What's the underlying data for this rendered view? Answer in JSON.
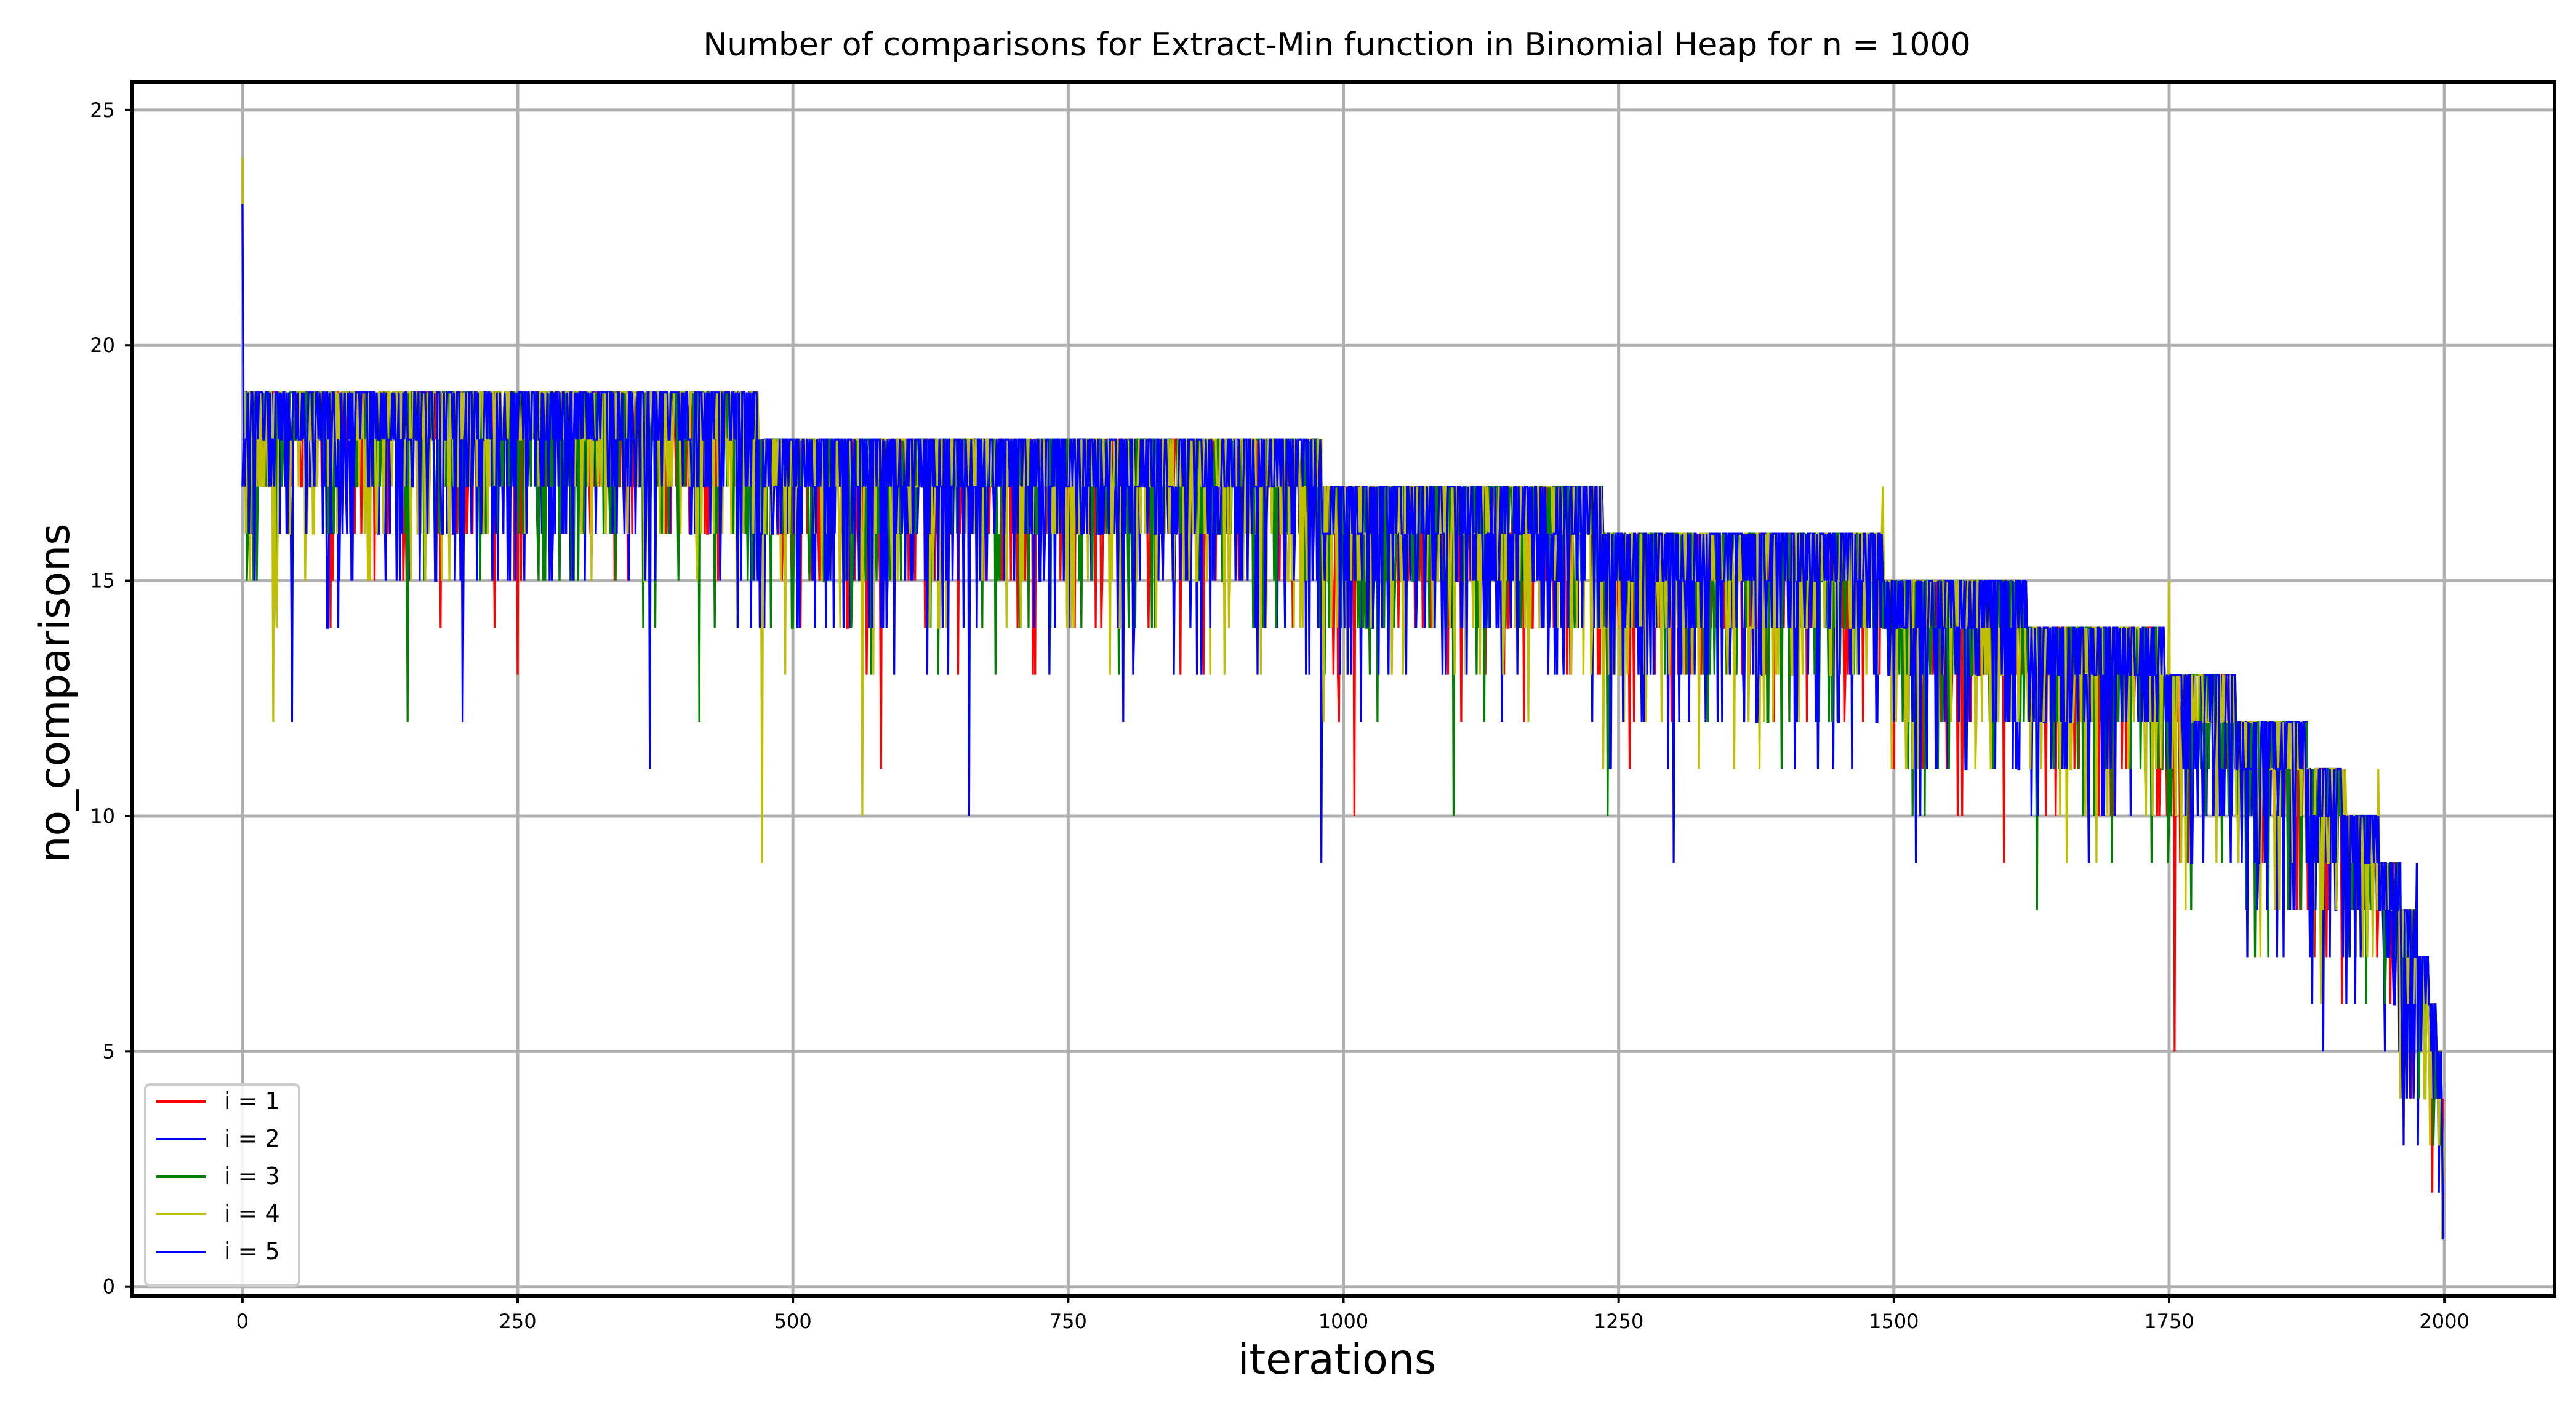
{
  "chart_data": {
    "type": "line",
    "title": "Number of comparisons for Extract-Min function in Binomial Heap for n = 1000",
    "xlabel": "iterations",
    "ylabel": "no_comparisons",
    "xlim": [
      -100,
      2100
    ],
    "ylim": [
      0,
      25
    ],
    "xticks": [
      0,
      250,
      500,
      750,
      1000,
      1250,
      1500,
      1750,
      2000
    ],
    "yticks": [
      0,
      5,
      10,
      15,
      20,
      25
    ],
    "xtick_labels": [
      "0",
      "250",
      "500",
      "750",
      "1000",
      "1250",
      "1500",
      "1750",
      "2000"
    ],
    "ytick_labels": [
      "0",
      "5",
      "10",
      "15",
      "20",
      "25"
    ],
    "grid": true,
    "legend_position": "lower-left",
    "n_points": 2000,
    "plateaus": [
      {
        "x_start": 0,
        "x_end": 468,
        "top": 19
      },
      {
        "x_start": 469,
        "x_end": 980,
        "top": 18
      },
      {
        "x_start": 981,
        "x_end": 1235,
        "top": 17
      },
      {
        "x_start": 1236,
        "x_end": 1490,
        "top": 16
      },
      {
        "x_start": 1491,
        "x_end": 1620,
        "top": 15
      },
      {
        "x_start": 1621,
        "x_end": 1745,
        "top": 14
      },
      {
        "x_start": 1746,
        "x_end": 1810,
        "top": 13
      },
      {
        "x_start": 1811,
        "x_end": 1875,
        "top": 12
      },
      {
        "x_start": 1876,
        "x_end": 1910,
        "top": 11
      },
      {
        "x_start": 1911,
        "x_end": 1940,
        "top": 10
      },
      {
        "x_start": 1941,
        "x_end": 1960,
        "top": 9
      },
      {
        "x_start": 1961,
        "x_end": 1975,
        "top": 8
      },
      {
        "x_start": 1976,
        "x_end": 1985,
        "top": 7
      },
      {
        "x_start": 1986,
        "x_end": 1992,
        "top": 6
      },
      {
        "x_start": 1993,
        "x_end": 1997,
        "top": 5
      },
      {
        "x_start": 1998,
        "x_end": 2000,
        "top": 3
      }
    ],
    "series": [
      {
        "name": "i = 1",
        "color": "#ff0000",
        "start_value": 18,
        "end_value": 4,
        "notable_points": [
          [
            0,
            18
          ],
          [
            120,
            15
          ],
          [
            250,
            13
          ],
          [
            580,
            11
          ],
          [
            1010,
            10
          ],
          [
            1600,
            9
          ],
          [
            1755,
            5
          ],
          [
            1970,
            4
          ]
        ]
      },
      {
        "name": "i = 2",
        "color": "#0000ff",
        "start_value": 17,
        "end_value": 2,
        "notable_points": [
          [
            0,
            17
          ],
          [
            45,
            12
          ],
          [
            370,
            11
          ],
          [
            660,
            10
          ],
          [
            980,
            9
          ],
          [
            1520,
            9
          ],
          [
            1890,
            5
          ],
          [
            1995,
            2
          ]
        ]
      },
      {
        "name": "i = 3",
        "color": "#008000",
        "start_value": 18,
        "end_value": 3,
        "notable_points": [
          [
            0,
            18
          ],
          [
            150,
            12
          ],
          [
            415,
            12
          ],
          [
            1100,
            10
          ],
          [
            1240,
            10
          ],
          [
            1630,
            8
          ],
          [
            1840,
            7
          ],
          [
            1990,
            3
          ]
        ]
      },
      {
        "name": "i = 4",
        "color": "#bfbf00",
        "start_value": 24,
        "end_value": 3,
        "notable_points": [
          [
            0,
            24
          ],
          [
            28,
            12
          ],
          [
            472,
            9
          ],
          [
            563,
            10
          ],
          [
            1490,
            17
          ],
          [
            1750,
            15
          ],
          [
            1940,
            11
          ],
          [
            1960,
            4
          ],
          [
            1995,
            3
          ]
        ]
      },
      {
        "name": "i = 5",
        "color": "#0000ff",
        "start_value": 23,
        "end_value": 1,
        "notable_points": [
          [
            0,
            23
          ],
          [
            200,
            12
          ],
          [
            800,
            12
          ],
          [
            1300,
            9
          ],
          [
            1880,
            6
          ],
          [
            1975,
            9
          ],
          [
            1999,
            1
          ]
        ]
      }
    ]
  }
}
